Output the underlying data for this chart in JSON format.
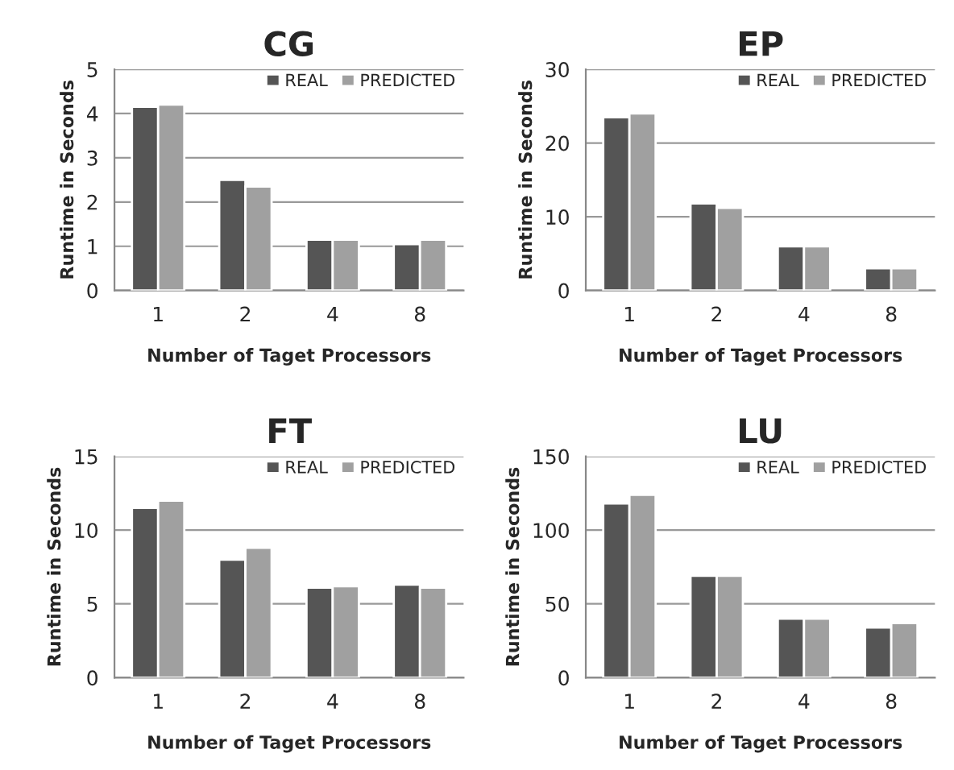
{
  "chart_data": [
    {
      "type": "bar",
      "title": "CG",
      "xlabel": "Number of Taget Processors",
      "ylabel": "Runtime in Seconds",
      "categories": [
        "1",
        "2",
        "4",
        "8"
      ],
      "ylim": [
        0,
        5
      ],
      "yticks": [
        0,
        1,
        2,
        3,
        4,
        5
      ],
      "grid": "y",
      "legend": "top right",
      "series": [
        {
          "name": "REAL",
          "color": "#555555",
          "values": [
            4.15,
            2.5,
            1.15,
            1.05
          ]
        },
        {
          "name": "PREDICTED",
          "color": "#a0a0a0",
          "values": [
            4.2,
            2.35,
            1.15,
            1.15
          ]
        }
      ]
    },
    {
      "type": "bar",
      "title": "EP",
      "xlabel": "Number of Taget Processors",
      "ylabel": "Runtime in Seconds",
      "categories": [
        "1",
        "2",
        "4",
        "8"
      ],
      "ylim": [
        0,
        30
      ],
      "yticks": [
        0,
        10,
        20,
        30
      ],
      "grid": "y",
      "legend": "top right",
      "series": [
        {
          "name": "REAL",
          "color": "#555555",
          "values": [
            23.5,
            11.8,
            6,
            3
          ]
        },
        {
          "name": "PREDICTED",
          "color": "#a0a0a0",
          "values": [
            24,
            11.2,
            6,
            3
          ]
        }
      ]
    },
    {
      "type": "bar",
      "title": "FT",
      "xlabel": "Number of Taget Processors",
      "ylabel": "Runtime in Seconds",
      "categories": [
        "1",
        "2",
        "4",
        "8"
      ],
      "ylim": [
        0,
        15
      ],
      "yticks": [
        0,
        5,
        10,
        15
      ],
      "grid": "y",
      "legend": "top right",
      "series": [
        {
          "name": "REAL",
          "color": "#555555",
          "values": [
            11.5,
            8,
            6.1,
            6.3
          ]
        },
        {
          "name": "PREDICTED",
          "color": "#a0a0a0",
          "values": [
            12,
            8.8,
            6.2,
            6.1
          ]
        }
      ]
    },
    {
      "type": "bar",
      "title": "LU",
      "xlabel": "Number of Taget Processors",
      "ylabel": "Runtime in Seconds",
      "categories": [
        "1",
        "2",
        "4",
        "8"
      ],
      "ylim": [
        0,
        150
      ],
      "yticks": [
        0,
        50,
        100,
        150
      ],
      "grid": "y",
      "legend": "top right",
      "series": [
        {
          "name": "REAL",
          "color": "#555555",
          "values": [
            118,
            69,
            40,
            34
          ]
        },
        {
          "name": "PREDICTED",
          "color": "#a0a0a0",
          "values": [
            124,
            69,
            40,
            37
          ]
        }
      ]
    }
  ]
}
